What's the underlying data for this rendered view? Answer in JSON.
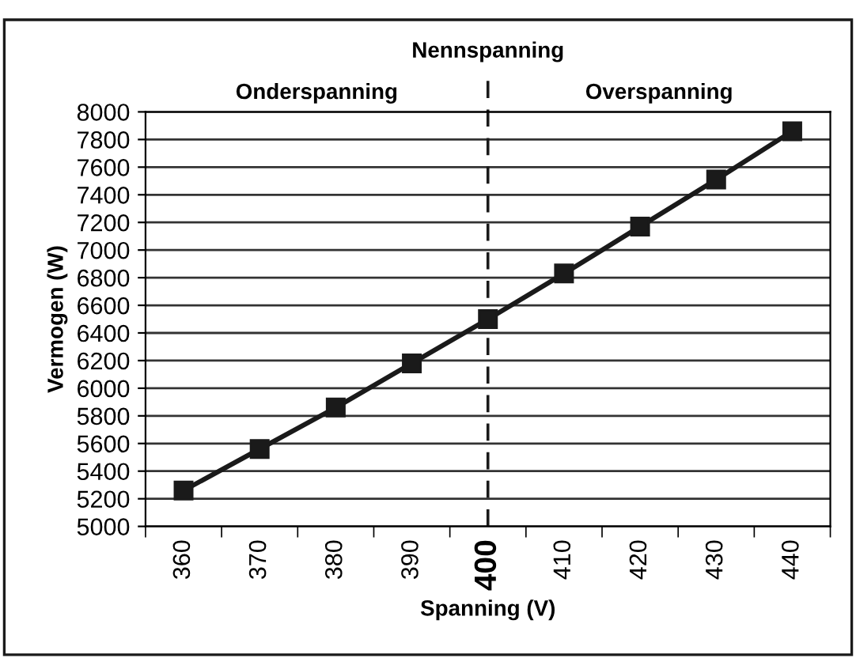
{
  "chart_data": {
    "type": "line",
    "xlabel": "Spanning (V)",
    "ylabel": "Vermogen (W)",
    "categories": [
      "360",
      "370",
      "380",
      "390",
      "400",
      "410",
      "420",
      "430",
      "440"
    ],
    "series": [
      {
        "color": "#1a1a1a",
        "values": [
          5260,
          5560,
          5860,
          6180,
          6500,
          6830,
          7170,
          7510,
          7860
        ]
      }
    ],
    "ylim": [
      5000,
      8000
    ],
    "yticks": [
      5000,
      5200,
      5400,
      5600,
      5800,
      6000,
      6200,
      6400,
      6600,
      6800,
      7000,
      7200,
      7400,
      7600,
      7800,
      8000
    ],
    "grid": "y",
    "marker": "square",
    "line_style": "solid",
    "ref_lines": [
      {
        "axis": "x",
        "value": "400",
        "label": "Nennspanning",
        "color": "#1a1a1a",
        "line_style": "dashed"
      }
    ],
    "annotations": [
      "Onderspanning",
      "Overspanning"
    ]
  }
}
